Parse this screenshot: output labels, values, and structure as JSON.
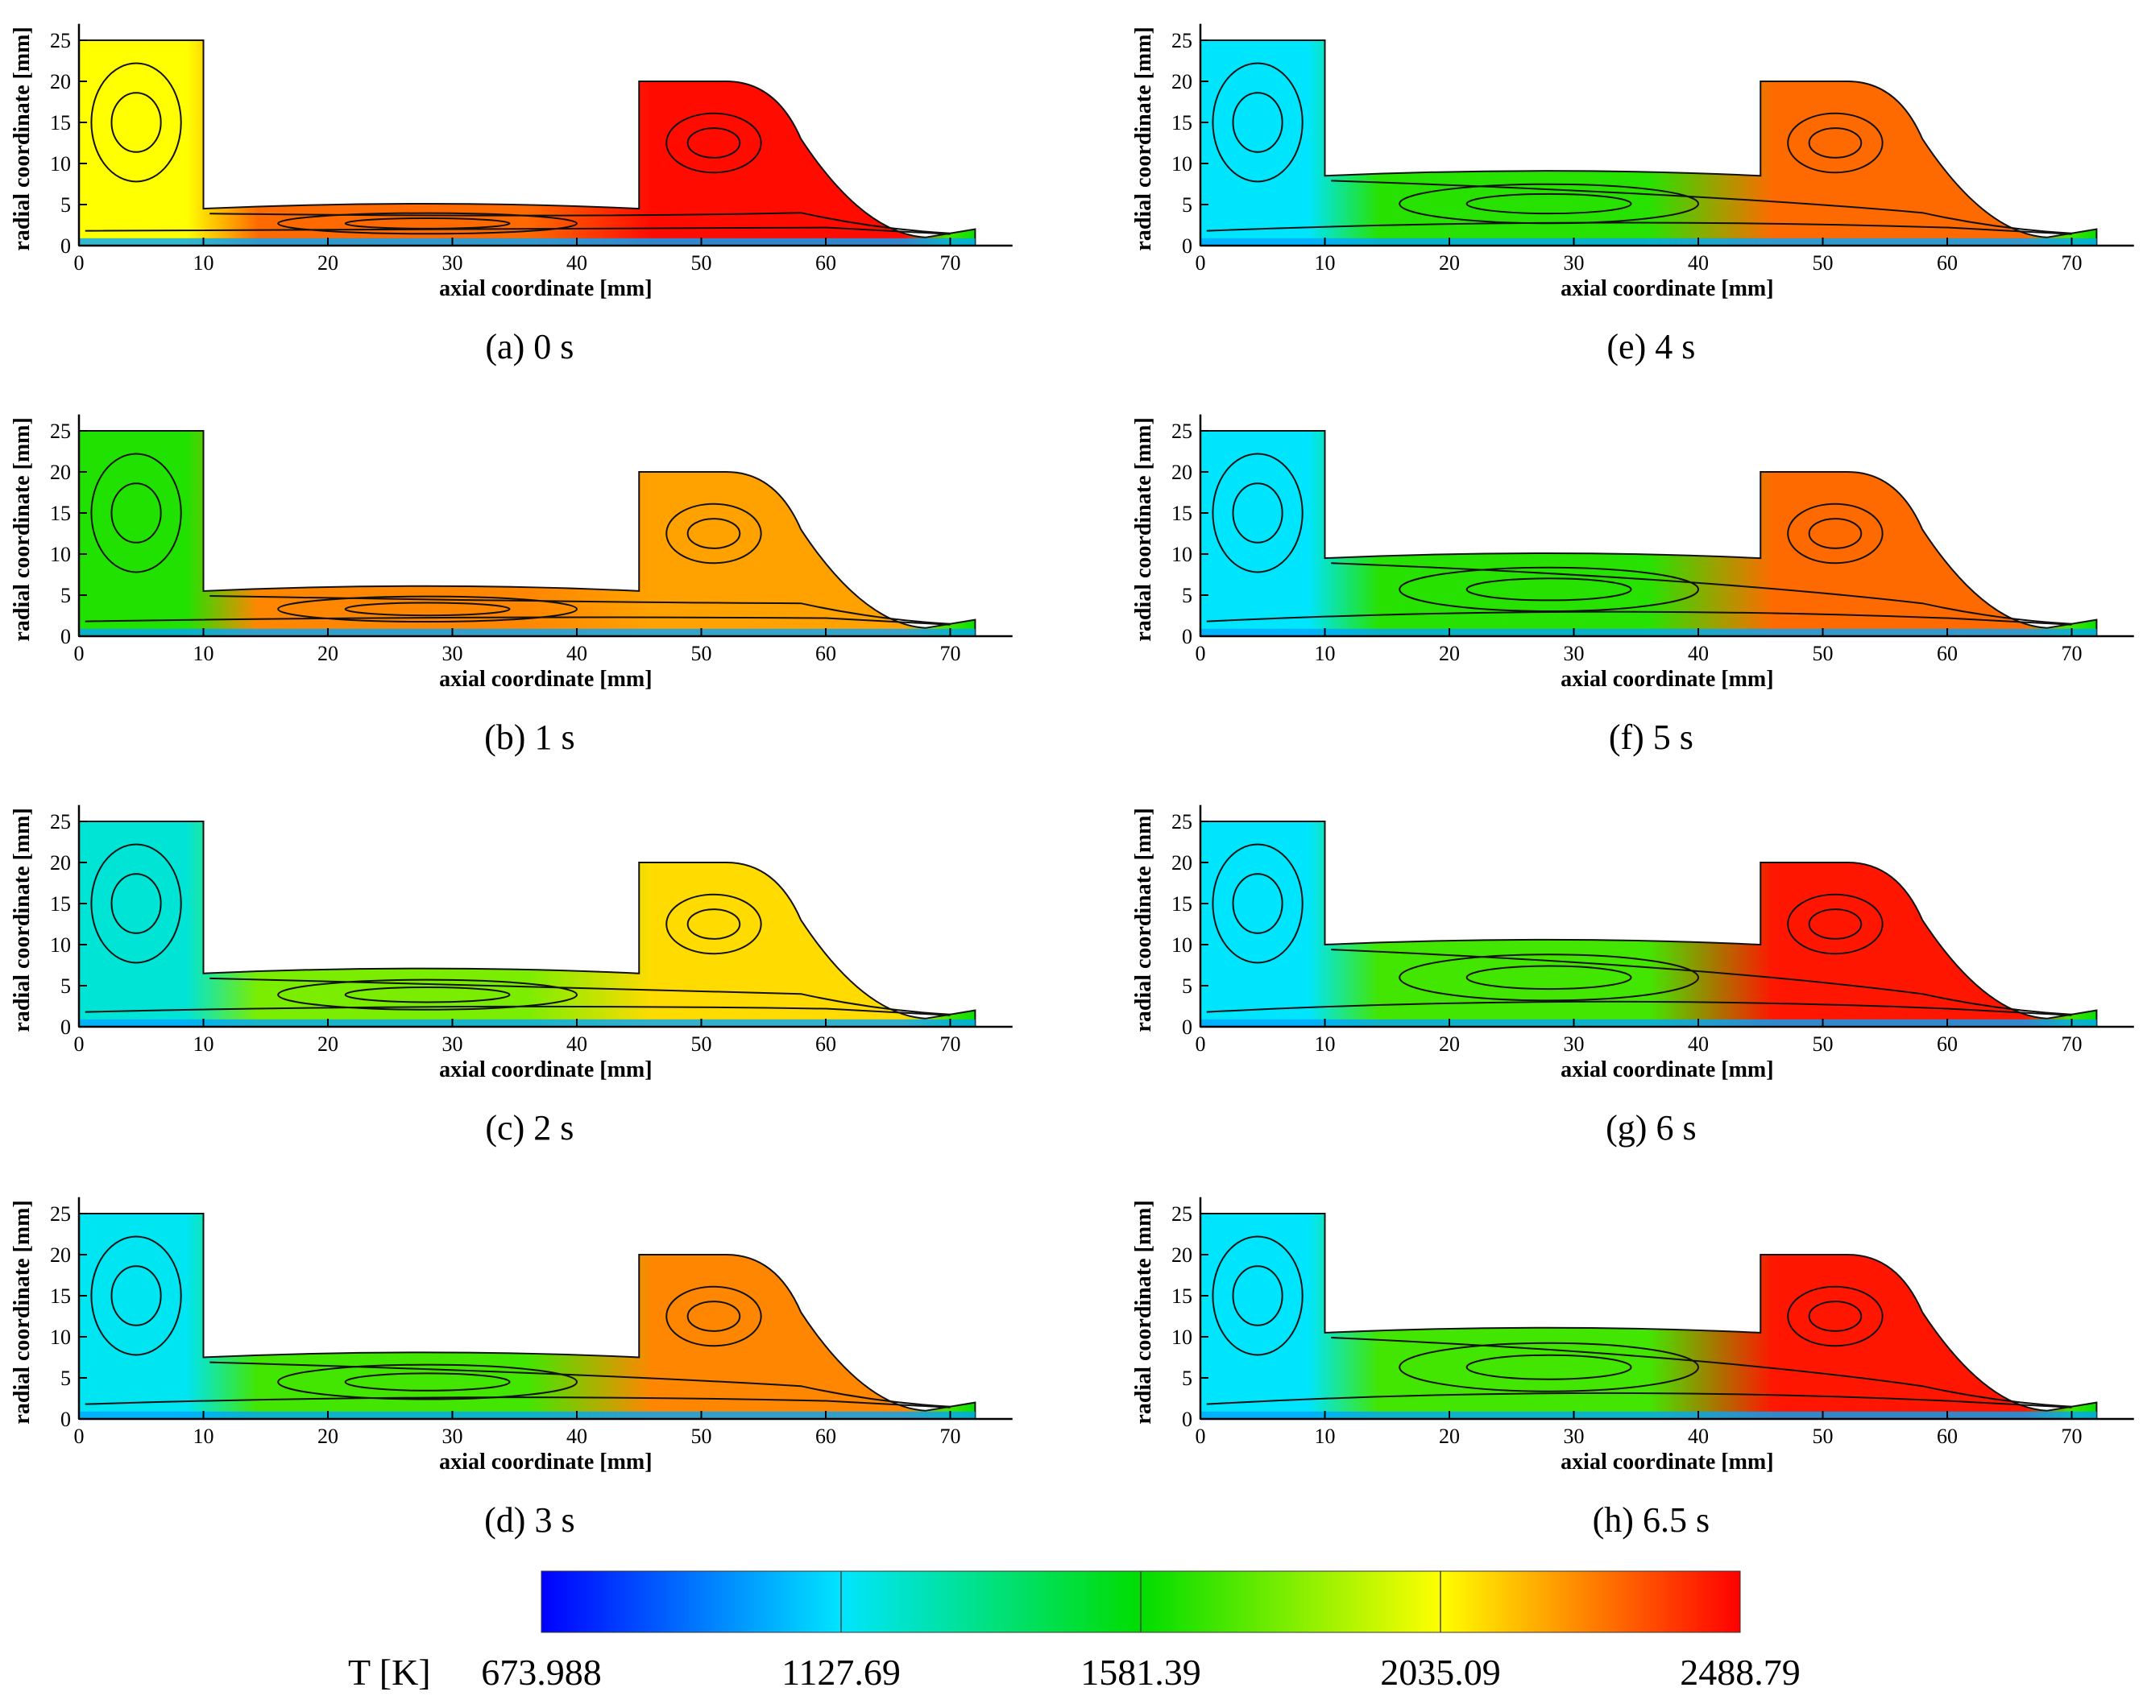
{
  "chart_data": {
    "type": "heatmap",
    "description_kind": "temperature contour with streamlines, 8 time snapshots",
    "xlabel": "axial coordinate [mm]",
    "ylabel": "radial coordinate [mm]",
    "xlim": [
      0,
      75
    ],
    "ylim": [
      0,
      27
    ],
    "xticks": [
      "0",
      "10",
      "20",
      "30",
      "40",
      "50",
      "60",
      "70"
    ],
    "yticks": [
      "0",
      "5",
      "10",
      "15",
      "20",
      "25"
    ],
    "geometry_mm": {
      "left_box": {
        "x": [
          0,
          10
        ],
        "r": [
          0,
          25
        ]
      },
      "right_box_start_x": 45,
      "right_box_top_r": 20,
      "outlet_x": 72
    },
    "panels": [
      {
        "caption": "(a) 0 s",
        "time_s": 0,
        "left_T": 2035,
        "channel_T": 2300,
        "right_T": 2470,
        "channel_top_r": 4.5
      },
      {
        "caption": "(b) 1 s",
        "time_s": 1,
        "left_T": 1640,
        "channel_T": 2250,
        "right_T": 2200,
        "channel_top_r": 5.5
      },
      {
        "caption": "(c) 2 s",
        "time_s": 2,
        "left_T": 1200,
        "channel_T": 1800,
        "right_T": 2100,
        "channel_top_r": 6.5
      },
      {
        "caption": "(d) 3 s",
        "time_s": 3,
        "left_T": 1150,
        "channel_T": 1700,
        "right_T": 2250,
        "channel_top_r": 7.5
      },
      {
        "caption": "(e) 4 s",
        "time_s": 4,
        "left_T": 1130,
        "channel_T": 1650,
        "right_T": 2300,
        "channel_top_r": 8.5
      },
      {
        "caption": "(f) 5 s",
        "time_s": 5,
        "left_T": 1130,
        "channel_T": 1650,
        "right_T": 2300,
        "channel_top_r": 9.5
      },
      {
        "caption": "(g) 6 s",
        "time_s": 6,
        "left_T": 1130,
        "channel_T": 1700,
        "right_T": 2450,
        "channel_top_r": 10
      },
      {
        "caption": "(h) 6.5 s",
        "time_s": 6.5,
        "left_T": 1130,
        "channel_T": 1700,
        "right_T": 2450,
        "channel_top_r": 10.5
      }
    ],
    "colorbar": {
      "label": "T [K]",
      "min": 673.988,
      "max": 2488.79,
      "ticks": [
        "673.988",
        "1127.69",
        "1581.39",
        "2035.09",
        "2488.79"
      ],
      "colors": [
        "#0000ff",
        "#00e5ff",
        "#00dd00",
        "#ffff00",
        "#ff0000"
      ]
    }
  }
}
